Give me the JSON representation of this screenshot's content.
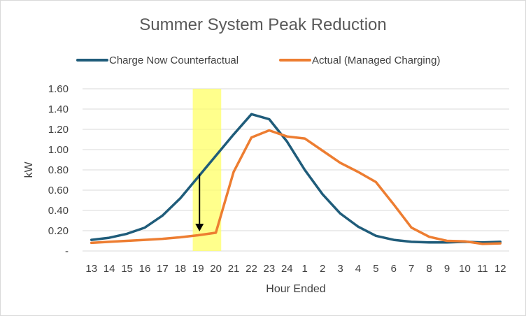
{
  "chart_data": {
    "type": "line",
    "title": "Summer System Peak Reduction",
    "xlabel": "Hour Ended",
    "ylabel": "kW",
    "categories": [
      "13",
      "14",
      "15",
      "16",
      "17",
      "18",
      "19",
      "20",
      "21",
      "22",
      "23",
      "24",
      "1",
      "2",
      "3",
      "4",
      "5",
      "6",
      "7",
      "8",
      "9",
      "10",
      "11",
      "12"
    ],
    "ylim": [
      0,
      1.6
    ],
    "yticks": [
      0,
      0.2,
      0.4,
      0.6,
      0.8,
      1.0,
      1.2,
      1.4,
      1.6
    ],
    "ytick_labels": [
      "-",
      "0.20",
      "0.40",
      "0.60",
      "0.80",
      "1.00",
      "1.20",
      "1.40",
      "1.60"
    ],
    "grid": true,
    "legend_position": "top",
    "series": [
      {
        "name": "Charge Now Counterfactual",
        "color": "#1f5c7a",
        "values": [
          0.11,
          0.13,
          0.17,
          0.23,
          0.35,
          0.52,
          0.73,
          0.94,
          1.15,
          1.35,
          1.3,
          1.08,
          0.8,
          0.56,
          0.37,
          0.24,
          0.15,
          0.11,
          0.09,
          0.085,
          0.085,
          0.09,
          0.085,
          0.09
        ]
      },
      {
        "name": "Actual (Managed Charging)",
        "color": "#ed7d31",
        "values": [
          0.08,
          0.09,
          0.1,
          0.11,
          0.12,
          0.135,
          0.155,
          0.18,
          0.78,
          1.12,
          1.19,
          1.13,
          1.11,
          0.99,
          0.87,
          0.78,
          0.68,
          0.46,
          0.23,
          0.14,
          0.1,
          0.095,
          0.07,
          0.075
        ]
      }
    ],
    "highlight": {
      "from_category": "19",
      "to_category": "20",
      "color": "#ffff66"
    },
    "annotation": {
      "type": "arrow",
      "category": "19",
      "from_value": 0.76,
      "to_value": 0.2
    }
  }
}
